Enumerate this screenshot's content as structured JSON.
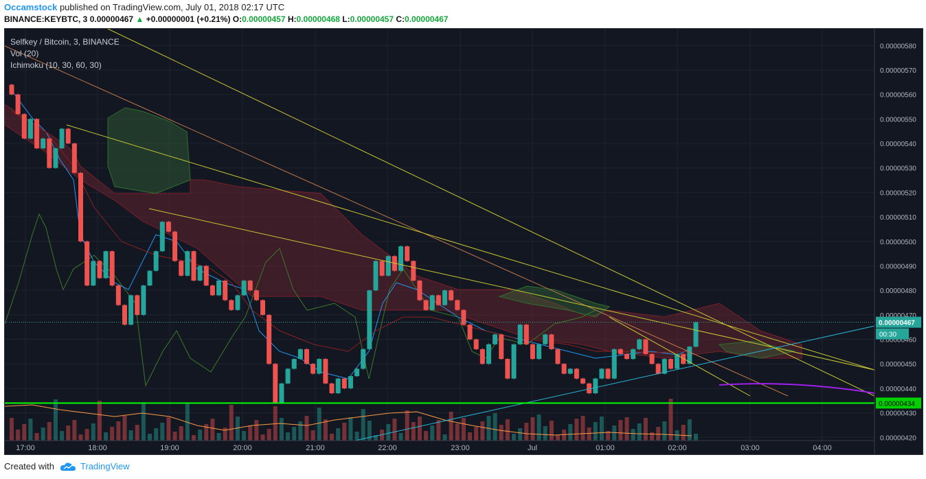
{
  "header": {
    "author": "Occamstock",
    "published": "published on TradingView.com, July 01, 2018 02:17 UTC",
    "symbol": "BINANCE:KEYBTC, 3",
    "price": "0.00000467",
    "change": "+0.00000001 (+0.21%)",
    "o_label": "O:",
    "o": "0.00000457",
    "h_label": "H:",
    "h": "0.00000468",
    "l_label": "L:",
    "l": "0.00000457",
    "c_label": "C:",
    "c": "0.00000467"
  },
  "legend": {
    "title": "Selfkey / Bitcoin, 3, BINANCE",
    "vol": "Vol (20)",
    "ichimoku": "Ichimoku (10, 30, 60, 30)"
  },
  "footer": {
    "created": "Created with",
    "brand": "TradingView"
  },
  "colors": {
    "bg": "#131722",
    "up": "#26a69a",
    "down": "#ef5350",
    "support": "#00ff00",
    "trend": "#c8c832",
    "trend_orange": "#c27b4a",
    "cyan": "#29b6d6",
    "purple": "#a020f0"
  },
  "chart_data": {
    "type": "candlestick",
    "y_ticks": [
      "0.00000580",
      "0.00000570",
      "0.00000560",
      "0.00000550",
      "0.00000540",
      "0.00000530",
      "0.00000520",
      "0.00000510",
      "0.00000500",
      "0.00000490",
      "0.00000480",
      "0.00000470",
      "0.00000460",
      "0.00000450",
      "0.00000440",
      "0.00000430",
      "0.00000420"
    ],
    "ylim": [
      4.17e-06,
      5.84e-06
    ],
    "x_ticks": [
      "17:00",
      "18:00",
      "19:00",
      "20:00",
      "21:00",
      "22:00",
      "23:00",
      "Jul",
      "01:00",
      "02:00",
      "03:00",
      "04:00"
    ],
    "last_price_label": "0.00000467",
    "countdown_label": "00:30",
    "support_label": "0.00000434",
    "support_level": 4.34e-06,
    "candles": [
      [
        5.64,
        5.6
      ],
      [
        5.6,
        5.52
      ],
      [
        5.52,
        5.42
      ],
      [
        5.42,
        5.5
      ],
      [
        5.5,
        5.38
      ],
      [
        5.38,
        5.42
      ],
      [
        5.42,
        5.3
      ],
      [
        5.3,
        5.38
      ],
      [
        5.38,
        5.46
      ],
      [
        5.46,
        5.4
      ],
      [
        5.4,
        5.28
      ],
      [
        5.28,
        5.0
      ],
      [
        5.0,
        4.82
      ],
      [
        4.82,
        4.92
      ],
      [
        4.92,
        4.85
      ],
      [
        4.85,
        4.96
      ],
      [
        4.96,
        4.82
      ],
      [
        4.82,
        4.74
      ],
      [
        4.74,
        4.66
      ],
      [
        4.66,
        4.78
      ],
      [
        4.78,
        4.7
      ],
      [
        4.7,
        4.82
      ],
      [
        4.82,
        4.88
      ],
      [
        4.88,
        4.96
      ],
      [
        4.96,
        5.08
      ],
      [
        5.08,
        5.04
      ],
      [
        5.04,
        4.92
      ],
      [
        4.92,
        4.86
      ],
      [
        4.86,
        4.96
      ],
      [
        4.96,
        4.84
      ],
      [
        4.84,
        4.9
      ],
      [
        4.9,
        4.82
      ],
      [
        4.82,
        4.78
      ],
      [
        4.78,
        4.84
      ],
      [
        4.84,
        4.76
      ],
      [
        4.76,
        4.72
      ],
      [
        4.72,
        4.78
      ],
      [
        4.78,
        4.84
      ],
      [
        4.84,
        4.8
      ],
      [
        4.8,
        4.76
      ],
      [
        4.76,
        4.7
      ],
      [
        4.7,
        4.5
      ],
      [
        4.5,
        4.34
      ],
      [
        4.34,
        4.42
      ],
      [
        4.42,
        4.48
      ],
      [
        4.48,
        4.52
      ],
      [
        4.52,
        4.56
      ],
      [
        4.56,
        4.5
      ],
      [
        4.5,
        4.46
      ],
      [
        4.46,
        4.52
      ],
      [
        4.52,
        4.42
      ],
      [
        4.42,
        4.38
      ],
      [
        4.38,
        4.44
      ],
      [
        4.44,
        4.4
      ],
      [
        4.4,
        4.45
      ],
      [
        4.45,
        4.48
      ],
      [
        4.48,
        4.56
      ],
      [
        4.56,
        4.8
      ],
      [
        4.8,
        4.92
      ],
      [
        4.92,
        4.86
      ],
      [
        4.86,
        4.94
      ],
      [
        4.94,
        4.88
      ],
      [
        4.88,
        4.98
      ],
      [
        4.98,
        4.92
      ],
      [
        4.92,
        4.84
      ],
      [
        4.84,
        4.76
      ],
      [
        4.76,
        4.72
      ],
      [
        4.72,
        4.78
      ],
      [
        4.78,
        4.74
      ],
      [
        4.74,
        4.8
      ],
      [
        4.8,
        4.76
      ],
      [
        4.76,
        4.72
      ],
      [
        4.72,
        4.66
      ],
      [
        4.66,
        4.6
      ],
      [
        4.6,
        4.56
      ],
      [
        4.56,
        4.5
      ],
      [
        4.5,
        4.58
      ],
      [
        4.58,
        4.62
      ],
      [
        4.62,
        4.52
      ],
      [
        4.52,
        4.44
      ],
      [
        4.44,
        4.58
      ],
      [
        4.58,
        4.66
      ],
      [
        4.66,
        4.58
      ],
      [
        4.58,
        4.52
      ],
      [
        4.52,
        4.58
      ],
      [
        4.58,
        4.62
      ],
      [
        4.62,
        4.56
      ],
      [
        4.56,
        4.5
      ],
      [
        4.5,
        4.46
      ],
      [
        4.46,
        4.48
      ],
      [
        4.48,
        4.44
      ],
      [
        4.44,
        4.42
      ],
      [
        4.42,
        4.38
      ],
      [
        4.38,
        4.44
      ],
      [
        4.44,
        4.48
      ],
      [
        4.48,
        4.44
      ],
      [
        4.44,
        4.56
      ],
      [
        4.56,
        4.54
      ],
      [
        4.54,
        4.52
      ],
      [
        4.52,
        4.56
      ],
      [
        4.56,
        4.6
      ],
      [
        4.6,
        4.54
      ],
      [
        4.54,
        4.5
      ],
      [
        4.5,
        4.46
      ],
      [
        4.46,
        4.52
      ],
      [
        4.52,
        4.48
      ],
      [
        4.48,
        4.54
      ],
      [
        4.54,
        4.5
      ],
      [
        4.5,
        4.57
      ],
      [
        4.57,
        4.67
      ]
    ]
  }
}
